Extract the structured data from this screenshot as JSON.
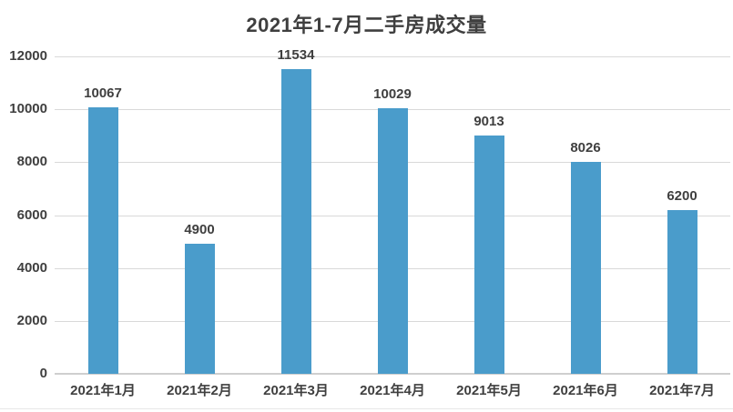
{
  "title": "2021年1-7月二手房成交量",
  "colors": {
    "bar": "#4a9ccb",
    "grid": "#d9d9d9",
    "axis": "#cfcfcf",
    "text": "#3f3f3f",
    "background": "#ffffff",
    "bottom_border": "#e7e7e7"
  },
  "chart_data": {
    "type": "bar",
    "title": "2021年1-7月二手房成交量",
    "categories": [
      "2021年1月",
      "2021年2月",
      "2021年3月",
      "2021年4月",
      "2021年5月",
      "2021年6月",
      "2021年7月"
    ],
    "values": [
      10067,
      4900,
      11534,
      10029,
      9013,
      8026,
      6200
    ],
    "xlabel": "",
    "ylabel": "",
    "ylim": [
      0,
      12000
    ],
    "yticks": [
      0,
      2000,
      4000,
      6000,
      8000,
      10000,
      12000
    ],
    "grid": true,
    "legend": "none",
    "data_labels": true,
    "bar_color": "#4a9ccb"
  }
}
